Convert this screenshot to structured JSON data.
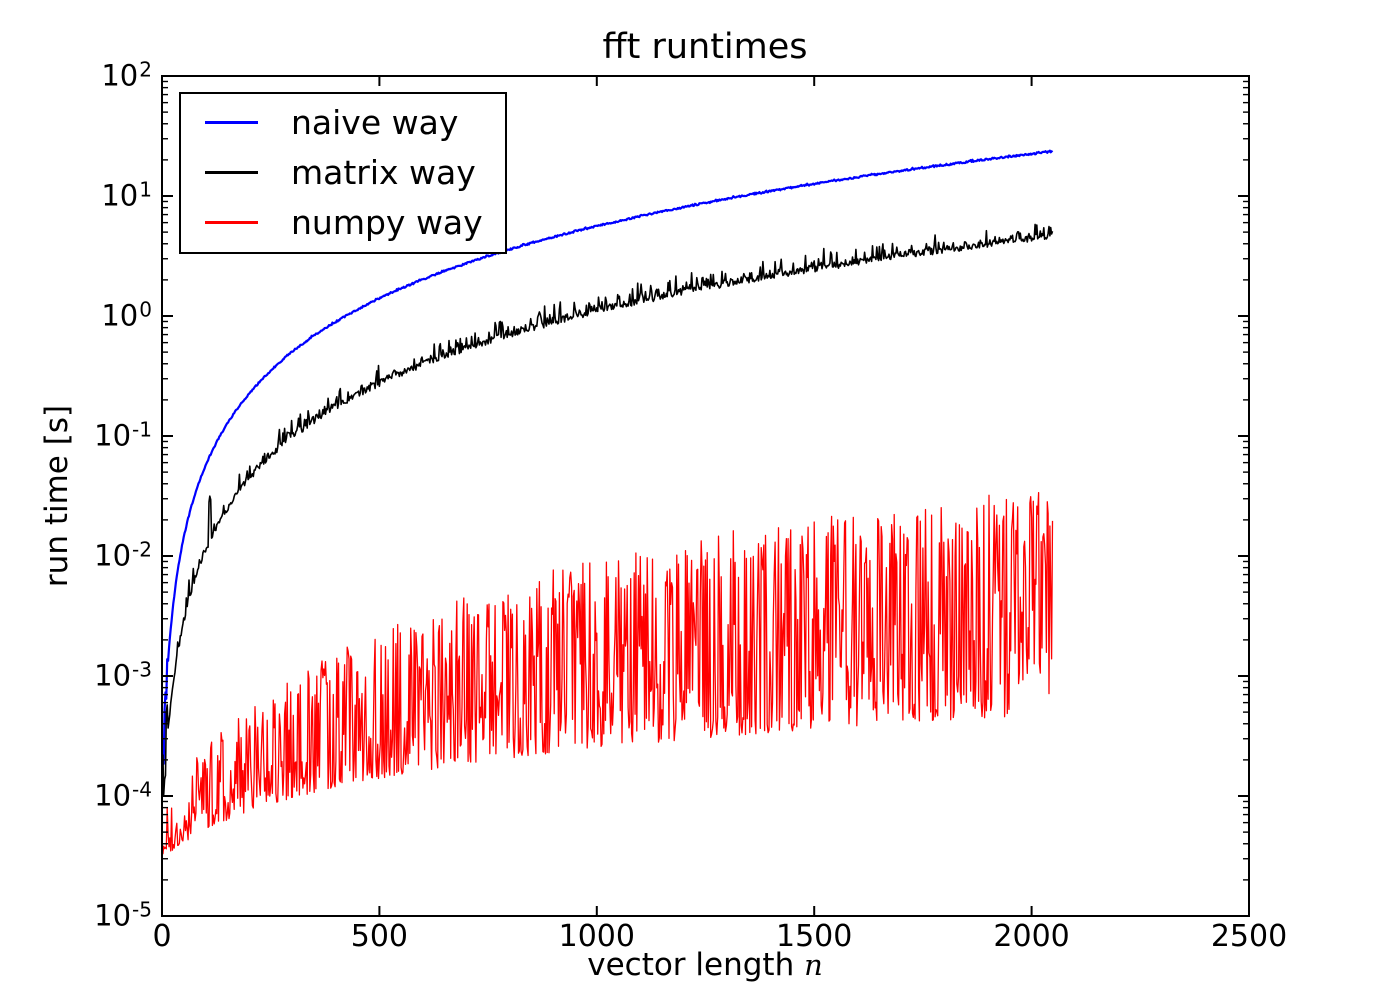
{
  "figure": {
    "background": "#ffffff",
    "frame_color": "#000000"
  },
  "chart_data": {
    "type": "line",
    "title": "fft runtimes",
    "xlabel": "vector length",
    "xlabel_math_symbol": "n",
    "ylabel": "run time [s]",
    "grid": false,
    "x_axis": {
      "min": 0,
      "max": 2500,
      "ticks": [
        0,
        500,
        1000,
        1500,
        2000,
        2500
      ]
    },
    "y_axis": {
      "scale": "log",
      "min": 1e-05,
      "max": 100,
      "tick_exponents": [
        2,
        1,
        0,
        -1,
        -2,
        -3,
        -4,
        -5
      ],
      "tick_base": "10"
    },
    "legend": {
      "position": "upper left",
      "entries": [
        {
          "label": "naive way",
          "color": "#0000ff"
        },
        {
          "label": "matrix way",
          "color": "#000000"
        },
        {
          "label": "numpy way",
          "color": "#ff0000"
        }
      ]
    },
    "rng_seed": 1337,
    "series": [
      {
        "name": "naive way",
        "color": "#0000ff",
        "line_width": 2.2,
        "model": "quadratic",
        "n_start": 2,
        "n_end": 2048,
        "n_step": 2,
        "coef": 5.6e-06,
        "overhead": 0.00022,
        "noise": 0.014,
        "spike_amp": 0.02,
        "spike_pow": 6,
        "startup_n": 14,
        "startup_noise": 0.7,
        "spikes": [],
        "anchor_points": [
          [
            100,
            0.056
          ],
          [
            500,
            1.4
          ],
          [
            1000,
            5.6
          ],
          [
            1500,
            12.6
          ],
          [
            2048,
            23.4
          ]
        ]
      },
      {
        "name": "matrix way",
        "color": "#000000",
        "line_width": 1.6,
        "model": "quadratic",
        "n_start": 2,
        "n_end": 2048,
        "n_step": 2,
        "coef": 1.1e-06,
        "overhead": 0.00013,
        "noise": 0.055,
        "spike_amp": 0.4,
        "spike_pow": 6,
        "startup_n": 14,
        "startup_noise": 0.8,
        "spikes": [
          {
            "n": 110,
            "factor": 2.2
          }
        ],
        "anchor_points": [
          [
            100,
            0.011
          ],
          [
            500,
            0.28
          ],
          [
            1000,
            1.1
          ],
          [
            1500,
            2.5
          ],
          [
            2048,
            4.6
          ]
        ]
      },
      {
        "name": "numpy way",
        "color": "#ff0000",
        "line_width": 1.3,
        "model": "noisy_band",
        "n_start": 2,
        "n_end": 2048,
        "n_step": 2,
        "lower_a": 3e-05,
        "lower_b": 2.2e-07,
        "spread_max": 2.0,
        "spread_scale": 1.45,
        "spread_tau": 800,
        "u_pow": 1.7,
        "top_prob": 0.15,
        "early_n": 60,
        "early_prob": 0.75,
        "early_damp": 0.35,
        "envelope_points": {
          "n": [
            100,
            500,
            1000,
            1500,
            2000
          ],
          "lower": [
            5.2e-05,
            0.00014,
            0.00025,
            0.00036,
            0.00047
          ],
          "upper": [
            0.00019,
            0.0015,
            0.0083,
            0.018,
            0.037
          ]
        }
      }
    ]
  }
}
